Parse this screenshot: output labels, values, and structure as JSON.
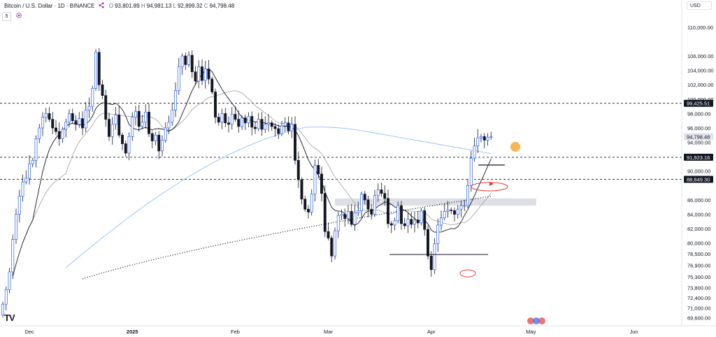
{
  "header": {
    "symbol": "Bitcoin / U.S. Dollar · 1D · BINANCE",
    "open_label": "O",
    "open": "93,801.89",
    "high_label": "H",
    "high": "94,981.13",
    "low_label": "L",
    "low": "92,899.32",
    "close_label": "C",
    "close": "94,798.48",
    "symbol_icon": "share-icon"
  },
  "toolbar": {
    "scale_button": "5",
    "settings_icon": "gear-icon"
  },
  "currency": "USD",
  "logo": "TV",
  "colors": {
    "up": "#2962ff",
    "down": "#131722",
    "ma_fast": "#131722",
    "ma_mid": "#9e9e9e",
    "ma_slow": "#90bff9",
    "ma_dotted": "#131722",
    "annotation": "#e53935",
    "highlight": "#f7a935",
    "zone": "#d1d4dc",
    "price_tag": "#131722"
  },
  "chart_data": {
    "type": "candlestick",
    "title": "Bitcoin / U.S. Dollar · 1D · BINANCE",
    "xlabel": "",
    "ylabel": "",
    "ylim": [
      68500,
      113000
    ],
    "x_ticks": [
      {
        "day": 8,
        "label": "Dec"
      },
      {
        "day": 39,
        "label": "2025"
      },
      {
        "day": 70,
        "label": "Feb"
      },
      {
        "day": 98,
        "label": "Mar"
      },
      {
        "day": 129,
        "label": "Apr"
      },
      {
        "day": 159,
        "label": "May"
      },
      {
        "day": 190,
        "label": "Jun"
      }
    ],
    "y_ticks": [
      110000,
      106000,
      104000,
      102000,
      100000,
      98000,
      96000,
      94000,
      90000,
      86000,
      84000,
      82000,
      80000,
      78500,
      76900,
      75300,
      73800,
      72400,
      71000,
      69600
    ],
    "price_labels": [
      {
        "value": 99425.51,
        "text": "99,425.51"
      },
      {
        "value": 94798.48,
        "text": "94,798.48"
      },
      {
        "value": 91923.16,
        "text": "91,923.16"
      },
      {
        "value": 88849.3,
        "text": "88,849.30"
      }
    ],
    "horizontal_levels": [
      99425.51,
      91923.16,
      88849.3
    ],
    "support_zone": [
      85200,
      86200
    ],
    "closes": [
      71500,
      73500,
      76000,
      80500,
      84000,
      86500,
      88500,
      89000,
      91000,
      91500,
      94500,
      96000,
      97500,
      98000,
      97200,
      96000,
      95500,
      94500,
      95800,
      96800,
      98000,
      97000,
      96500,
      97300,
      96000,
      98500,
      99000,
      101500,
      106500,
      102000,
      100500,
      97200,
      94800,
      96500,
      97800,
      95000,
      93800,
      92500,
      94800,
      97500,
      98300,
      96200,
      96800,
      98200,
      95200,
      94200,
      95000,
      92800,
      94300,
      96000,
      96800,
      98500,
      101200,
      104500,
      106000,
      104800,
      106100,
      103800,
      102500,
      104500,
      102600,
      104200,
      102800,
      101000,
      97500,
      96800,
      98000,
      96700,
      96500,
      97900,
      97200,
      96200,
      97400,
      96700,
      97600,
      96100,
      95900,
      97200,
      95800,
      96500,
      96700,
      96200,
      95900,
      95200,
      96300,
      96700,
      95600,
      96500,
      91500,
      88800,
      86100,
      84700,
      84300,
      86800,
      90800,
      89600,
      86900,
      81600,
      80700,
      78200,
      81700,
      83800,
      84000,
      83400,
      84400,
      82600,
      84200,
      84500,
      86800,
      86000,
      84700,
      84000,
      86600,
      87400,
      86900,
      86200,
      82700,
      82500,
      83100,
      85200,
      82700,
      82400,
      83300,
      82600,
      83200,
      82800,
      84500,
      81900,
      78200,
      76300,
      79900,
      82500,
      83500,
      84400,
      84600,
      84500,
      84000,
      84700,
      85200,
      85200,
      88000,
      91800,
      93500,
      94600,
      94800,
      94300,
      94700,
      94798
    ]
  }
}
